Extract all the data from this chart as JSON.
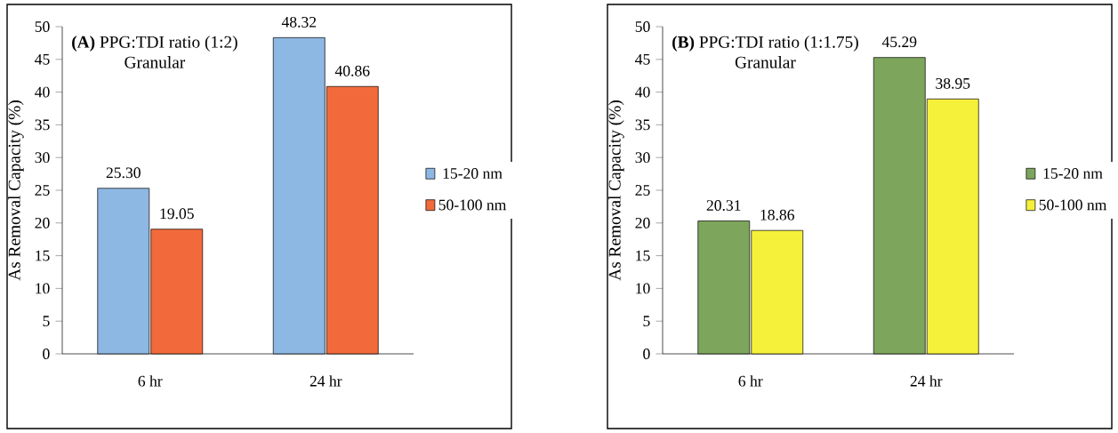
{
  "chart_data": [
    {
      "type": "bar",
      "title": "**(A)** PPG:TDI ratio (1:2)",
      "subtitle": "Granular",
      "ylabel": "As Removal Capacity (%)",
      "categories": [
        "6 hr",
        "24 hr"
      ],
      "series": [
        {
          "name": "15-20 nm",
          "color": "#8db8e3",
          "values": [
            25.3,
            48.32
          ],
          "value_labels": [
            "25.30",
            "48.32"
          ]
        },
        {
          "name": "50-100 nm",
          "color": "#f26a3c",
          "values": [
            19.05,
            40.86
          ],
          "value_labels": [
            "19.05",
            "40.86"
          ]
        }
      ],
      "ylim": [
        0,
        50
      ],
      "yticks": [
        0,
        5,
        10,
        15,
        20,
        25,
        30,
        35,
        40,
        45,
        50
      ],
      "legend": "right"
    },
    {
      "type": "bar",
      "title": "**(B)** PPG:TDI ratio (1:1.75)",
      "subtitle": "Granular",
      "ylabel": "As Removal Capacity (%)",
      "categories": [
        "6 hr",
        "24 hr"
      ],
      "series": [
        {
          "name": "15-20 nm",
          "color": "#7da65c",
          "values": [
            20.31,
            45.29
          ],
          "value_labels": [
            "20.31",
            "45.29"
          ]
        },
        {
          "name": "50-100 nm",
          "color": "#f5f03a",
          "values": [
            18.86,
            38.95
          ],
          "value_labels": [
            "18.86",
            "38.95"
          ]
        }
      ],
      "ylim": [
        0,
        50
      ],
      "yticks": [
        0,
        5,
        10,
        15,
        20,
        25,
        30,
        35,
        40,
        45,
        50
      ],
      "legend": "right"
    }
  ]
}
